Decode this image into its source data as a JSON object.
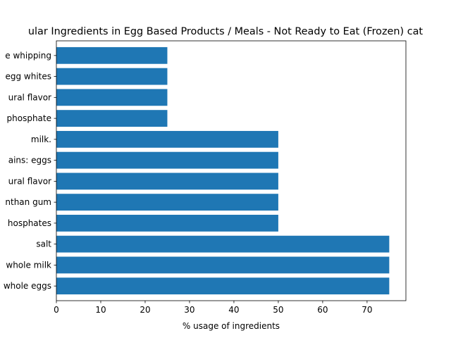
{
  "chart_data": {
    "type": "bar",
    "orientation": "horizontal",
    "title": "ular Ingredients in Egg Based Products / Meals - Not Ready to Eat (Frozen) cat",
    "xlabel": "% usage of ingredients",
    "ylabel": "",
    "xlim": [
      0,
      78.75
    ],
    "xticks": [
      0,
      10,
      20,
      30,
      40,
      50,
      60,
      70
    ],
    "grid": false,
    "bar_color": "#1f77b4",
    "categories": [
      "whole eggs",
      "whole milk",
      "salt",
      "hosphates",
      "nthan gum",
      "ural flavor",
      "ains: eggs",
      "milk.",
      "phosphate",
      "ural flavor",
      "egg whites",
      "e whipping"
    ],
    "values": [
      75,
      75,
      75,
      50,
      50,
      50,
      50,
      50,
      25,
      25,
      25,
      25
    ]
  }
}
